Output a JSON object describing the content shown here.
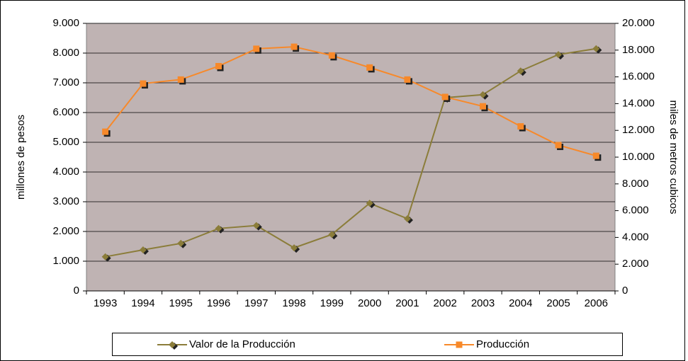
{
  "chart_data": {
    "type": "line",
    "categories": [
      "1993",
      "1994",
      "1995",
      "1996",
      "1997",
      "1998",
      "1999",
      "2000",
      "2001",
      "2002",
      "2003",
      "2004",
      "2005",
      "2006"
    ],
    "series": [
      {
        "name": "Valor de la Producción",
        "color": "#8b7d3a",
        "marker": "diamond",
        "values": [
          1150,
          1380,
          1600,
          2100,
          2200,
          1450,
          1900,
          2950,
          2430,
          6500,
          6600,
          7400,
          7950,
          8150
        ]
      },
      {
        "name": "Producción",
        "color": "#f7892a",
        "marker": "square",
        "axis": "y2",
        "values": [
          11900,
          15500,
          15800,
          16800,
          18100,
          18250,
          17600,
          16700,
          15800,
          14500,
          13800,
          12300,
          10900,
          10100
        ]
      }
    ],
    "ylabel": "millones de pesos",
    "y2label": "miles de metros cubicos",
    "ylim": [
      0,
      9000
    ],
    "yticks": [
      0,
      {
        "value": 1000,
        "label": "1.000"
      },
      {
        "value": 2000,
        "label": "2.000"
      },
      {
        "value": 3000,
        "label": "3.000"
      },
      {
        "value": 4000,
        "label": "4.000"
      },
      {
        "value": 5000,
        "label": "5.000"
      },
      {
        "value": 6000,
        "label": "6.000"
      },
      {
        "value": 7000,
        "label": "7.000"
      },
      {
        "value": 8000,
        "label": "8.000"
      },
      {
        "value": 9000,
        "label": "9.000"
      }
    ],
    "y2lim": [
      0,
      20000
    ],
    "y2ticks": [
      0,
      {
        "value": 2000,
        "label": "2.000"
      },
      {
        "value": 4000,
        "label": "4.000"
      },
      {
        "value": 6000,
        "label": "6.000"
      },
      {
        "value": 8000,
        "label": "8.000"
      },
      {
        "value": 10000,
        "label": "10.000"
      },
      {
        "value": 12000,
        "label": "12.000"
      },
      {
        "value": 14000,
        "label": "14.000"
      },
      {
        "value": 16000,
        "label": "16.000"
      },
      {
        "value": 18000,
        "label": "18.000"
      },
      {
        "value": 20000,
        "label": "20.000"
      }
    ],
    "grid": true,
    "legend": "bottom"
  }
}
